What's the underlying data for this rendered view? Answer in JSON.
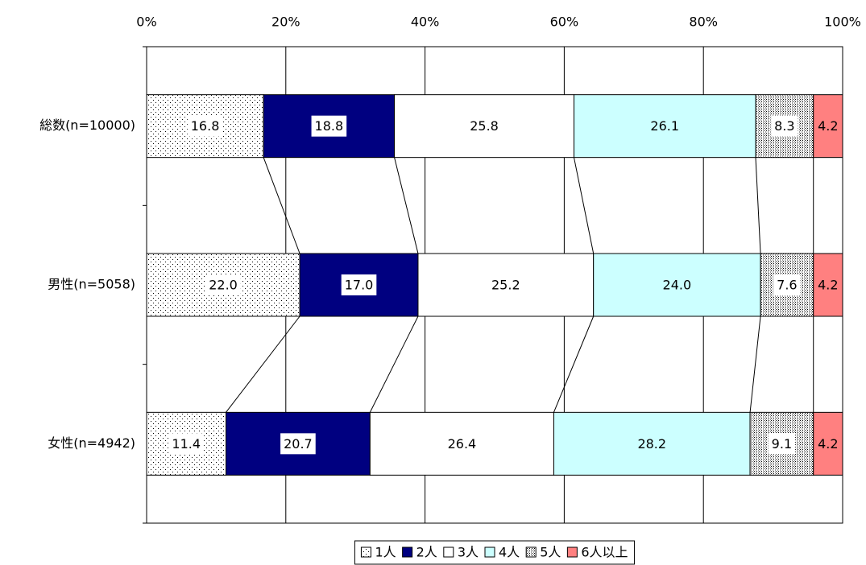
{
  "chart_data": {
    "type": "stacked-bar-100",
    "orientation": "horizontal",
    "categories": [
      "総数(n=10000)",
      "男性(n=5058)",
      "女性(n=4942)"
    ],
    "xlim": [
      0,
      100
    ],
    "xticks": [
      {
        "value": 0,
        "label": "0%"
      },
      {
        "value": 20,
        "label": "20%"
      },
      {
        "value": 40,
        "label": "40%"
      },
      {
        "value": 60,
        "label": "60%"
      },
      {
        "value": 80,
        "label": "80%"
      },
      {
        "value": 100,
        "label": "100%"
      }
    ],
    "grid": true,
    "series_lines": true,
    "legend": "bottom",
    "series": [
      {
        "name": "1人",
        "color": "#ffffff",
        "pattern": "dots-sparse",
        "label_box": true,
        "values": [
          16.8,
          22,
          11.4
        ],
        "value_labels": [
          "16.8",
          "22.0",
          "11.4"
        ]
      },
      {
        "name": "2人",
        "color": "#000080",
        "label_box": true,
        "values": [
          18.8,
          17,
          20.7
        ],
        "value_labels": [
          "18.8",
          "17.0",
          "20.7"
        ]
      },
      {
        "name": "3人",
        "color": "#ffffff",
        "label_box": false,
        "values": [
          25.8,
          25.2,
          26.4
        ],
        "value_labels": [
          "25.8",
          "25.2",
          "26.4"
        ]
      },
      {
        "name": "4人",
        "color": "#ccffff",
        "label_box": false,
        "values": [
          26.1,
          24,
          28.2
        ],
        "value_labels": [
          "26.1",
          "24.0",
          "28.2"
        ]
      },
      {
        "name": "5人",
        "color": "#ffffff",
        "pattern": "dots-dense",
        "label_box": true,
        "values": [
          8.3,
          7.6,
          9.1
        ],
        "value_labels": [
          "8.3",
          "7.6",
          "9.1"
        ]
      },
      {
        "name": "6人以上",
        "color": "#ff8080",
        "label_box": false,
        "values": [
          4.2,
          4.2,
          4.2
        ],
        "value_labels": [
          "4.2",
          "4.2",
          "4.2"
        ]
      }
    ]
  }
}
